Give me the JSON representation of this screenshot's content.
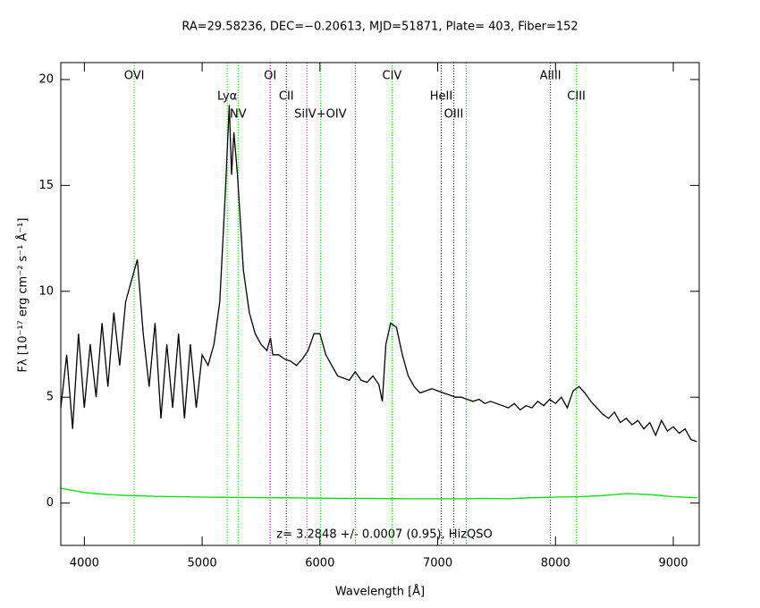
{
  "chart_data": {
    "type": "line",
    "title": "RA=29.58236, DEC=−0.20613, MJD=51871, Plate= 403, Fiber=152",
    "xlabel": "Wavelength [Å]",
    "ylabel": "Fλ [10⁻¹⁷ erg cm⁻² s⁻¹ Å⁻¹]",
    "annotation": "z= 3.2848 +/- 0.0007 (0.95), HizQSO",
    "xlim": [
      3800,
      9220
    ],
    "ylim": [
      -2,
      20.8
    ],
    "xticks": [
      4000,
      5000,
      6000,
      7000,
      8000,
      9000
    ],
    "yticks": [
      0,
      5,
      10,
      15,
      20
    ],
    "x": [
      3800,
      3850,
      3900,
      3950,
      4000,
      4050,
      4100,
      4150,
      4200,
      4250,
      4300,
      4350,
      4400,
      4450,
      4500,
      4550,
      4600,
      4650,
      4700,
      4750,
      4800,
      4850,
      4900,
      4950,
      5000,
      5050,
      5100,
      5150,
      5200,
      5230,
      5250,
      5270,
      5300,
      5350,
      5400,
      5450,
      5500,
      5550,
      5580,
      5600,
      5650,
      5700,
      5750,
      5800,
      5850,
      5900,
      5950,
      6000,
      6050,
      6100,
      6150,
      6200,
      6250,
      6300,
      6350,
      6400,
      6450,
      6500,
      6530,
      6560,
      6600,
      6650,
      6700,
      6750,
      6800,
      6850,
      6900,
      6950,
      7000,
      7050,
      7100,
      7150,
      7200,
      7250,
      7300,
      7350,
      7400,
      7450,
      7500,
      7550,
      7600,
      7650,
      7700,
      7750,
      7800,
      7850,
      7900,
      7950,
      8000,
      8050,
      8100,
      8150,
      8200,
      8250,
      8300,
      8350,
      8400,
      8450,
      8500,
      8550,
      8600,
      8650,
      8700,
      8750,
      8800,
      8850,
      8900,
      8950,
      9000,
      9050,
      9100,
      9150,
      9200
    ],
    "series": [
      {
        "color": "#000000",
        "values": [
          4.5,
          7.0,
          3.5,
          8.0,
          4.5,
          7.5,
          5.0,
          8.5,
          5.5,
          9.0,
          6.5,
          9.5,
          10.5,
          11.5,
          8.0,
          5.5,
          8.5,
          4.0,
          7.5,
          4.5,
          8.0,
          4.0,
          7.5,
          4.5,
          7.0,
          6.5,
          7.5,
          9.5,
          15.0,
          18.8,
          15.5,
          17.5,
          15.5,
          11.0,
          9.0,
          8.0,
          7.5,
          7.2,
          7.8,
          7.0,
          7.0,
          6.8,
          6.7,
          6.5,
          6.8,
          7.2,
          8.0,
          8.0,
          7.0,
          6.5,
          6.0,
          5.9,
          5.8,
          6.2,
          5.8,
          5.7,
          6.0,
          5.6,
          4.8,
          7.5,
          8.5,
          8.3,
          7.0,
          6.0,
          5.5,
          5.2,
          5.3,
          5.4,
          5.3,
          5.2,
          5.1,
          5.0,
          5.0,
          4.9,
          4.8,
          4.9,
          4.7,
          4.8,
          4.7,
          4.6,
          4.5,
          4.7,
          4.4,
          4.6,
          4.5,
          4.8,
          4.6,
          4.9,
          4.7,
          5.0,
          4.5,
          5.3,
          5.5,
          5.2,
          4.8,
          4.5,
          4.2,
          4.0,
          4.3,
          3.8,
          4.0,
          3.7,
          3.9,
          3.5,
          3.8,
          3.2,
          3.9,
          3.4,
          3.6,
          3.3,
          3.5,
          3.0,
          2.9
        ]
      },
      {
        "color": "#00dd00",
        "x": [
          3800,
          4000,
          4200,
          4400,
          4600,
          4800,
          5000,
          5200,
          5400,
          5600,
          5800,
          6000,
          6200,
          6400,
          6600,
          6800,
          7000,
          7200,
          7400,
          7600,
          7800,
          8000,
          8200,
          8400,
          8600,
          8800,
          9000,
          9200
        ],
        "values": [
          0.7,
          0.5,
          0.4,
          0.35,
          0.32,
          0.3,
          0.28,
          0.27,
          0.26,
          0.25,
          0.24,
          0.23,
          0.22,
          0.22,
          0.21,
          0.2,
          0.2,
          0.2,
          0.22,
          0.2,
          0.25,
          0.28,
          0.3,
          0.35,
          0.45,
          0.4,
          0.3,
          0.25
        ]
      }
    ],
    "lines": [
      {
        "label": "OVI",
        "x": 4423,
        "color": "#00cc00",
        "row": 0
      },
      {
        "label": "Lyα",
        "x": 5213,
        "color": "#00cc00",
        "row": 1
      },
      {
        "label": "NV",
        "x": 5305,
        "color": "#00cc00",
        "row": 2
      },
      {
        "label": "OI",
        "x": 5578,
        "color": "#000000",
        "row": 0
      },
      {
        "label": "CII",
        "x": 5715,
        "color": "#000000",
        "row": 1
      },
      {
        "label": "SiIV+OIV",
        "x": 6004,
        "color": "#00cc00",
        "row": 2
      },
      {
        "label": "CIV",
        "x": 6612,
        "color": "#00cc00",
        "row": 0
      },
      {
        "label": "HeII",
        "x": 7030,
        "color": "#000000",
        "row": 1
      },
      {
        "label": "OIII",
        "x": 7136,
        "color": "#000000",
        "row": 2
      },
      {
        "label": "AlIII",
        "x": 7957,
        "color": "#000000",
        "row": 0
      },
      {
        "label": "CIII",
        "x": 8177,
        "color": "#00cc00",
        "row": 1
      },
      {
        "x": 5577,
        "color": "#cc00cc"
      },
      {
        "x": 5890,
        "color": "#cc00cc"
      },
      {
        "x": 6300,
        "color": "#cc00cc"
      },
      {
        "x": 7242,
        "color": "#cc00cc"
      }
    ]
  }
}
